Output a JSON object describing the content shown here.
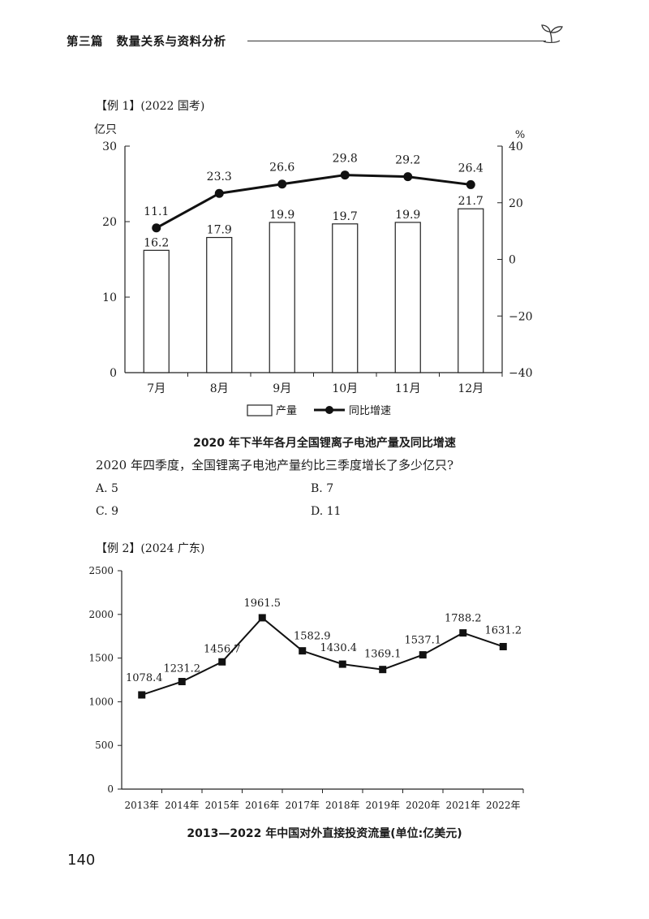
{
  "header": {
    "part": "第三篇",
    "title": "数量关系与资料分析"
  },
  "example1": {
    "label": "【例 1】(2022 国考)",
    "question": "2020 年四季度，全国锂离子电池产量约比三季度增长了多少亿只?",
    "options": [
      "A. 5",
      "B. 7",
      "C. 9",
      "D. 11"
    ]
  },
  "example2": {
    "label": "【例 2】(2024 广东)"
  },
  "page_number": "140",
  "chart_data": [
    {
      "type": "bar",
      "title": "2020 年下半年各月全国锂离子电池产量及同比增速",
      "categories": [
        "7月",
        "8月",
        "9月",
        "10月",
        "11月",
        "12月"
      ],
      "left_axis_label": "亿只",
      "right_axis_label": "%",
      "ylim": [
        0,
        30
      ],
      "yticks": [
        0,
        10,
        20,
        30
      ],
      "y2lim": [
        -40,
        40
      ],
      "y2ticks": [
        -40,
        -20,
        0,
        20,
        40
      ],
      "series": [
        {
          "name": "产量",
          "type": "bar",
          "axis": "left",
          "values": [
            16.2,
            17.9,
            19.9,
            19.7,
            19.9,
            21.7
          ]
        },
        {
          "name": "同比增速",
          "type": "line",
          "axis": "right",
          "values": [
            11.1,
            23.3,
            26.6,
            29.8,
            29.2,
            26.4
          ]
        }
      ],
      "legend_position": "bottom"
    },
    {
      "type": "line",
      "title": "2013—2022 年中国对外直接投资流量(单位:亿美元)",
      "categories": [
        "2013年",
        "2014年",
        "2015年",
        "2016年",
        "2017年",
        "2018年",
        "2019年",
        "2020年",
        "2021年",
        "2022年"
      ],
      "values": [
        1078.4,
        1231.2,
        1456.7,
        1961.5,
        1582.9,
        1430.4,
        1369.1,
        1537.1,
        1788.2,
        1631.2
      ],
      "labels": [
        "1078.4",
        "1231.2",
        "1456.7",
        "1961.5",
        "1582.9",
        "1430.4",
        "1369.1",
        "1537.1",
        "1788.2",
        "1631.2"
      ],
      "ylim": [
        0,
        2500
      ],
      "yticks": [
        0,
        500,
        1000,
        1500,
        2000,
        2500
      ],
      "marker": "square"
    }
  ]
}
